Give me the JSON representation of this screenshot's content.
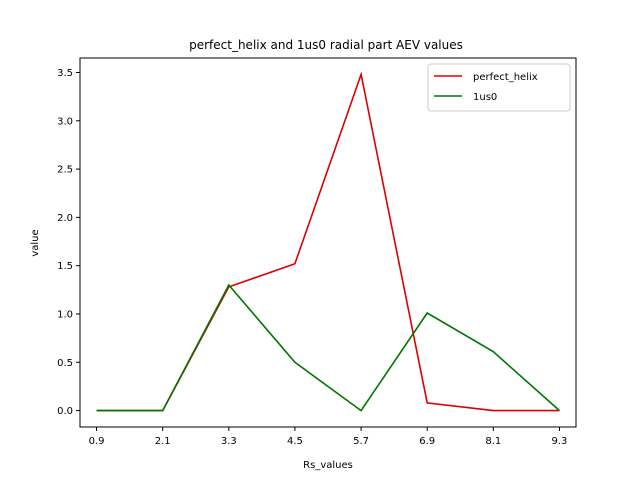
{
  "chart_data": {
    "type": "line",
    "title": "perfect_helix and 1us0 radial part AEV values",
    "xlabel": "Rs_values",
    "ylabel": "value",
    "x": [
      0.9,
      2.1,
      3.3,
      4.5,
      5.7,
      6.9,
      8.1,
      9.3
    ],
    "x_tick_labels": [
      "0.9",
      "2.1",
      "3.3",
      "4.5",
      "5.7",
      "6.9",
      "8.1",
      "9.3"
    ],
    "y_ticks": [
      0.0,
      0.5,
      1.0,
      1.5,
      2.0,
      2.5,
      3.0,
      3.5
    ],
    "y_tick_labels": [
      "0.0",
      "0.5",
      "1.0",
      "1.5",
      "2.0",
      "2.5",
      "3.0",
      "3.5"
    ],
    "xlim": [
      0.6,
      9.6
    ],
    "ylim": [
      -0.17,
      3.65
    ],
    "grid": false,
    "legend_position": "top-right",
    "series": [
      {
        "name": "perfect_helix",
        "color": "#dd0000",
        "values": [
          0.0,
          0.0,
          1.28,
          1.52,
          3.48,
          0.08,
          0.0,
          0.0
        ]
      },
      {
        "name": "1us0",
        "color": "#007700",
        "values": [
          0.0,
          0.0,
          1.3,
          0.5,
          0.0,
          1.01,
          0.61,
          0.0
        ]
      }
    ]
  }
}
